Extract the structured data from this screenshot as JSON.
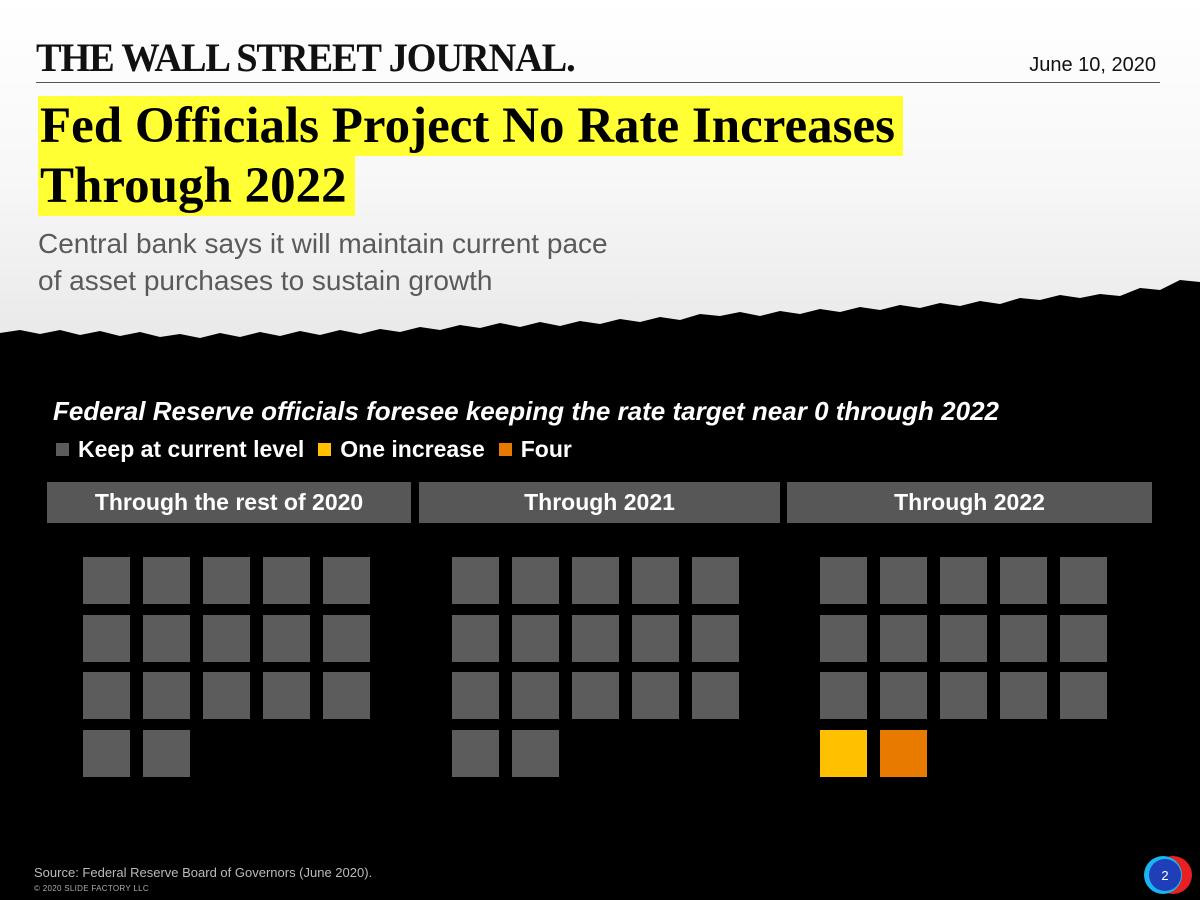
{
  "header": {
    "masthead": "THE WALL STREET JOURNAL.",
    "date": "June 10, 2020",
    "headline_line1": "Fed Officials Project No Rate Increases",
    "headline_line2": "Through 2022",
    "subhead_line1": "Central bank says it will maintain current pace",
    "subhead_line2": "of asset purchases to sustain growth"
  },
  "chart_data": {
    "type": "unit-chart",
    "title": "Federal Reserve officials foresee keeping the rate target near 0 through 2022",
    "legend": [
      {
        "label": "Keep at current level",
        "color": "#5c5c5c"
      },
      {
        "label": "One increase",
        "color": "#ffc000"
      },
      {
        "label": "Four",
        "color": "#e87a00"
      }
    ],
    "categories": [
      "Through the rest of 2020",
      "Through 2021",
      "Through 2022"
    ],
    "series": [
      {
        "name": "Keep at current level",
        "values": [
          17,
          17,
          15
        ]
      },
      {
        "name": "One increase",
        "values": [
          0,
          0,
          1
        ]
      },
      {
        "name": "Four",
        "values": [
          0,
          0,
          1
        ]
      }
    ],
    "units_per_row": 5
  },
  "footer": {
    "source": "Source: Federal Reserve Board of Governors (June 2020).",
    "copyright": "© 2020 SLIDE FACTORY LLC",
    "page_number": "2"
  }
}
